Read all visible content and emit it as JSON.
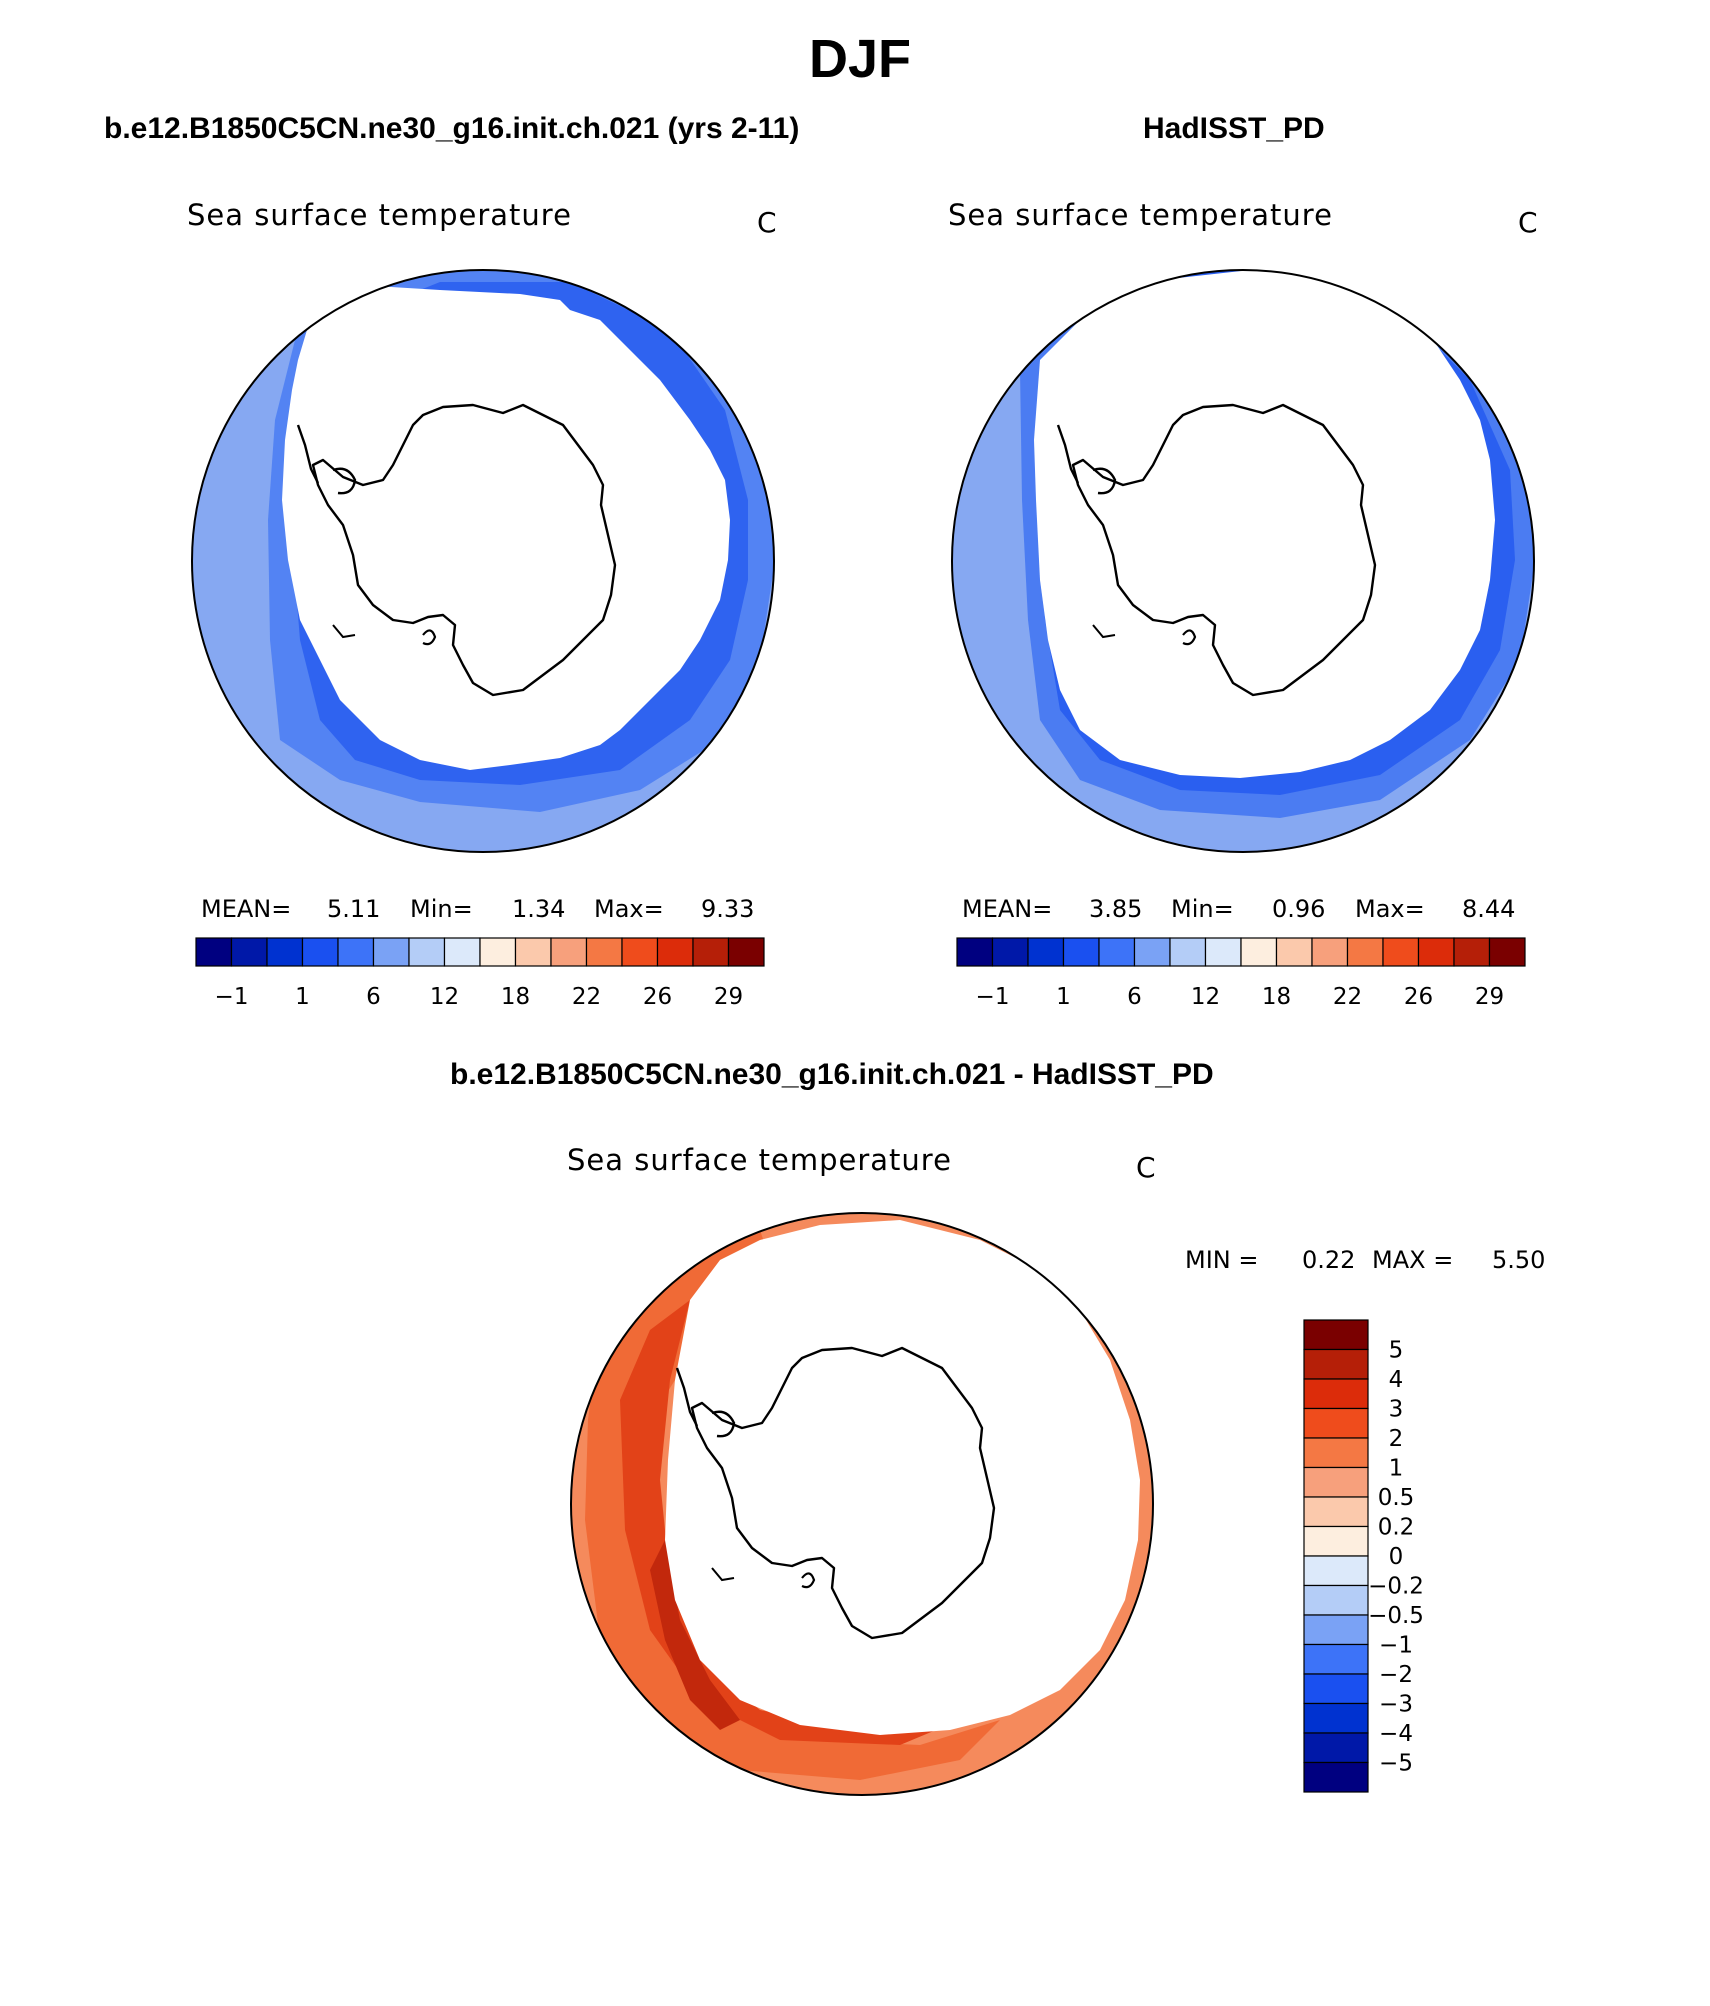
{
  "title": "DJF",
  "panels": {
    "model": {
      "title": "b.e12.B1850C5CN.ne30_g16.init.ch.021 (yrs 2-11)",
      "variable": "Sea surface temperature",
      "units": "C",
      "mean_label": "MEAN=",
      "mean": "5.11",
      "min_label": "Min=",
      "min": "1.34",
      "max_label": "Max=",
      "max": "9.33"
    },
    "obs": {
      "title": "HadISST_PD",
      "variable": "Sea surface temperature",
      "units": "C",
      "mean_label": "MEAN=",
      "mean": "3.85",
      "min_label": "Min=",
      "min": "0.96",
      "max_label": "Max=",
      "max": "8.44"
    },
    "diff": {
      "title": "b.e12.B1850C5CN.ne30_g16.init.ch.021 - HadISST_PD",
      "variable": "Sea surface temperature",
      "units": "C",
      "min_label": "MIN =",
      "min": "0.22",
      "max_label": "MAX =",
      "max": "5.50"
    }
  },
  "colorbars": {
    "abs": {
      "colors": [
        "#000080",
        "#0018a8",
        "#0032d0",
        "#1a50f0",
        "#3d73f8",
        "#7aa2f5",
        "#b4cdf7",
        "#dce9fa",
        "#fdeedf",
        "#fbc9ac",
        "#f7a07c",
        "#f47844",
        "#ef4c1c",
        "#dc2c0a",
        "#b51f08",
        "#7a0000"
      ],
      "tick_labels": [
        "−1",
        "1",
        "6",
        "12",
        "18",
        "22",
        "26",
        "29"
      ]
    },
    "diff": {
      "colors": [
        "#000080",
        "#0018a8",
        "#0032d0",
        "#1a50f0",
        "#3d73f8",
        "#7aa2f5",
        "#b4cdf7",
        "#dce9fa",
        "#fdeedf",
        "#fbc9ac",
        "#f7a07c",
        "#f47844",
        "#ef4c1c",
        "#dc2c0a",
        "#b51f08",
        "#7a0000"
      ],
      "tick_labels": [
        "5",
        "4",
        "3",
        "2",
        "1",
        "0.5",
        "0.2",
        "0",
        "−0.2",
        "−0.5",
        "−1",
        "−2",
        "−3",
        "−4",
        "−5"
      ]
    }
  },
  "map_colors": {
    "model_outer": "#86a8f2",
    "model_mid": "#5383f3",
    "model_inner": "#2f63f0",
    "obs_outer": "#86a8f2",
    "obs_mid": "#4b7cf2",
    "obs_inner": "#2a5ff0",
    "diff_outer": "#f58a5c",
    "diff_mid": "#f06a36",
    "diff_inner": "#e24218",
    "diff_dark": "#c2280c",
    "ice": "#ffffff",
    "coast": "#000000"
  }
}
